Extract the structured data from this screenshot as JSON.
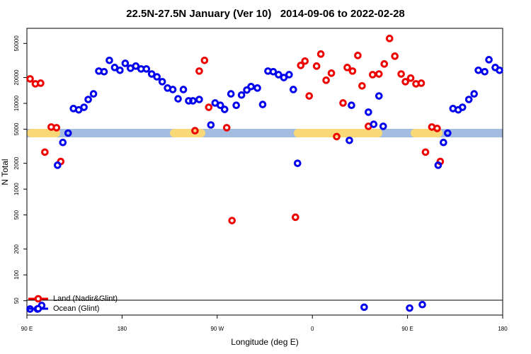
{
  "chart_data": {
    "type": "scatter",
    "title": "22.5N-27.5N January (Ver 10)   2014-09-06 to 2022-02-28",
    "xlabel": "Longitude (deg E)",
    "ylabel": "N Total",
    "log_y": true,
    "legend": "bottomleft",
    "xlim": [
      90,
      540
    ],
    "xticks": [
      {
        "value": 90,
        "label": "90 E"
      },
      180,
      {
        "value": 270,
        "label": "90 W"
      },
      {
        "value": 360,
        "label": "0"
      },
      {
        "value": 450,
        "label": "90 E"
      },
      {
        "value": 540,
        "label": "180"
      }
    ],
    "ylim": [
      34,
      75000
    ],
    "yticks": [
      50,
      100,
      200,
      500,
      1000,
      2000,
      5000,
      10000,
      20000,
      50000
    ],
    "series": [
      {
        "name": "Land (Nadir&Glint)",
        "color": "#ee0000",
        "x": [
          93,
          98,
          103,
          107,
          113,
          118,
          122,
          249,
          253,
          258,
          262,
          279,
          284,
          344,
          349,
          353,
          357,
          364,
          368,
          373,
          378,
          383,
          389,
          393,
          398,
          403,
          407,
          413,
          417,
          423,
          428,
          433,
          438,
          444,
          448,
          453,
          458,
          463,
          467,
          473,
          478,
          481
        ],
        "values": [
          19300,
          16900,
          17200,
          2700,
          5300,
          5200,
          2100,
          4800,
          23800,
          31700,
          9000,
          5200,
          430,
          470,
          27700,
          31100,
          12200,
          27200,
          37600,
          18600,
          22500,
          4100,
          10100,
          26200,
          23800,
          36200,
          16000,
          5400,
          21600,
          22000,
          28800,
          57100,
          35500,
          22000,
          17900,
          19700,
          16900,
          17200,
          2700,
          5300,
          5100,
          2100
        ]
      },
      {
        "name": "Ocean (Glint)",
        "color": "#0000ee",
        "x": [
          93,
          100,
          104,
          119,
          124,
          129,
          134,
          139,
          144,
          148,
          153,
          158,
          163,
          168,
          173,
          178,
          183,
          188,
          193,
          198,
          203,
          208,
          213,
          218,
          223,
          228,
          233,
          238,
          243,
          247,
          253,
          264,
          268,
          273,
          277,
          283,
          288,
          293,
          298,
          302,
          308,
          313,
          318,
          323,
          328,
          333,
          338,
          342,
          346,
          395,
          397,
          409,
          413,
          418,
          423,
          427,
          452,
          464,
          479,
          484,
          488,
          493,
          498,
          502,
          508,
          513,
          517,
          523,
          527,
          533,
          537
        ],
        "values": [
          40,
          40,
          44,
          1900,
          3500,
          4500,
          8700,
          8400,
          9000,
          11100,
          12900,
          23800,
          23400,
          31700,
          26200,
          24300,
          29300,
          25700,
          27200,
          25200,
          25200,
          22000,
          20400,
          17900,
          15100,
          14500,
          11300,
          14500,
          10700,
          10700,
          11100,
          5600,
          10100,
          9500,
          8500,
          12900,
          9500,
          12500,
          14300,
          15700,
          15100,
          9700,
          23800,
          23400,
          21600,
          20000,
          21600,
          14500,
          2000,
          3700,
          9500,
          42,
          7900,
          5700,
          12200,
          5400,
          41,
          45,
          1900,
          3500,
          4500,
          8700,
          8400,
          9000,
          11100,
          12900,
          24300,
          23400,
          32300,
          26200,
          24300
        ]
      }
    ]
  }
}
